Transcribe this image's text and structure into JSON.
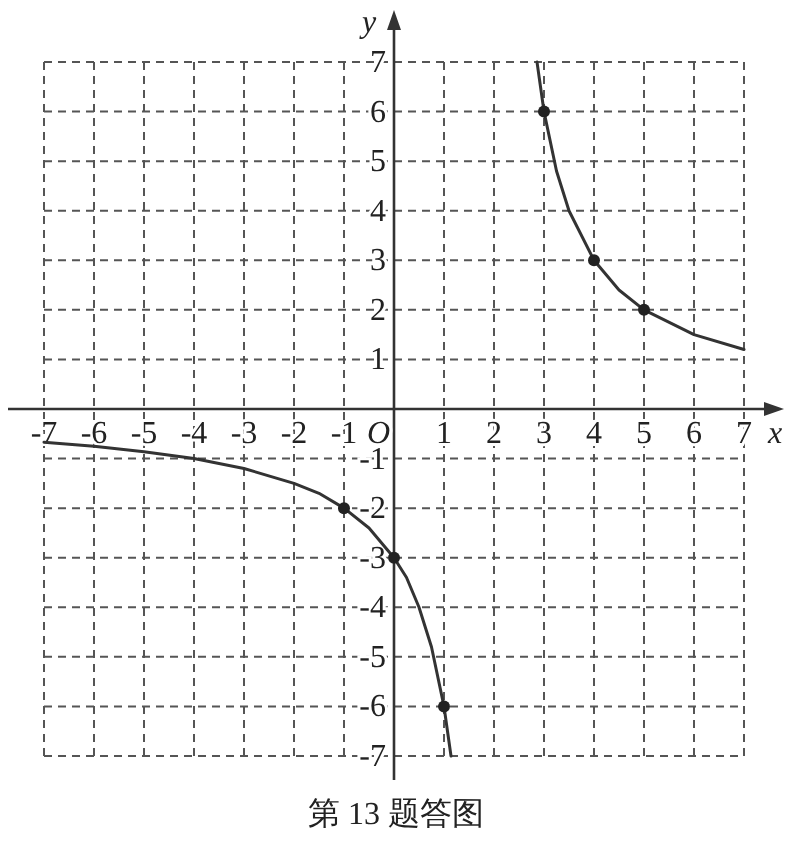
{
  "chart_data": {
    "type": "line",
    "xlabel": "x",
    "ylabel": "y",
    "xlim": [
      -7,
      7
    ],
    "ylim": [
      -7,
      7
    ],
    "xticks": [
      -7,
      -6,
      -5,
      -4,
      -3,
      -2,
      -1,
      1,
      2,
      3,
      4,
      5,
      6,
      7
    ],
    "yticks": [
      -7,
      -6,
      -5,
      -4,
      -3,
      -2,
      -1,
      1,
      2,
      3,
      4,
      5,
      6,
      7
    ],
    "grid": true,
    "series": [
      {
        "color": "#333333",
        "marker": "none",
        "x": [
          -7,
          -6,
          -5,
          -4,
          -3,
          -2,
          -1.5,
          -1,
          -0.5,
          0,
          0.25,
          0.5,
          0.75,
          1,
          1.14,
          null,
          2.86,
          3,
          3.25,
          3.5,
          4,
          4.5,
          5,
          6,
          7
        ],
        "values": [
          -0.67,
          -0.75,
          -0.86,
          -1,
          -1.2,
          -1.5,
          -1.7,
          -2,
          -2.4,
          -3,
          -3.4,
          -4,
          -4.8,
          -6,
          -7,
          null,
          7,
          6,
          4.8,
          4,
          3,
          2.4,
          2,
          1.5,
          1.2
        ]
      },
      {
        "type": "scatter",
        "color": "#222222",
        "marker": "circle",
        "x": [
          -1,
          0,
          1,
          3,
          4,
          5
        ],
        "values": [
          -2,
          -3,
          -6,
          6,
          3,
          2
        ]
      }
    ],
    "annotations": [
      "O",
      "第 13 题答图"
    ]
  }
}
